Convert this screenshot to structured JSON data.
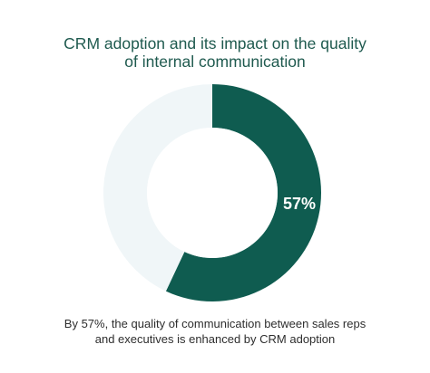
{
  "chart_data": {
    "type": "pie",
    "title_lines": [
      "CRM adoption and its impact on the quality",
      "of internal communication"
    ],
    "slices": [
      {
        "label": "",
        "value": 57,
        "color": "#0f5c50"
      },
      {
        "label": "",
        "value": 43,
        "color": "#f0f6f8"
      }
    ],
    "data_label": "57%",
    "caption_lines": [
      "By 57%, the quality of communication between sales reps",
      "and executives is enhanced by CRM adoption"
    ]
  }
}
